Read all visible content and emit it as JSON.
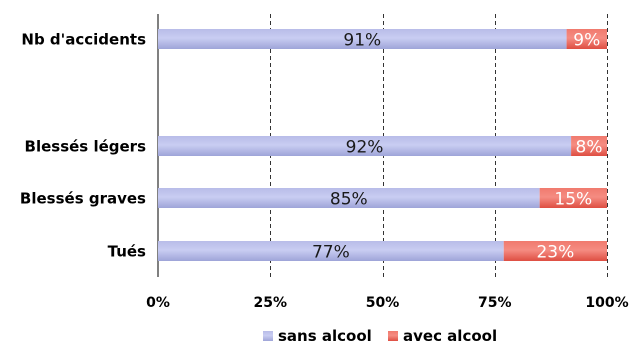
{
  "chart_data": {
    "type": "bar",
    "orientation": "horizontal",
    "stacked": "percent",
    "categories": [
      "Nb d'accidents",
      "Blessés légers",
      "Blessés graves",
      "Tués"
    ],
    "series": [
      {
        "name": "sans alcool",
        "color": "#b4b9e6",
        "values": [
          91,
          92,
          85,
          77
        ],
        "labels": [
          "91%",
          "92%",
          "85%",
          "77%"
        ]
      },
      {
        "name": "avec alcool",
        "color": "#f0665a",
        "values": [
          9,
          8,
          15,
          23
        ],
        "labels": [
          "9%",
          "8%",
          "15%",
          "23%"
        ]
      }
    ],
    "x_ticks": [
      "0%",
      "25%",
      "50%",
      "75%",
      "100%"
    ],
    "xlim": [
      0,
      100
    ],
    "grid": "vertical dashed",
    "legend": "bottom",
    "title": "",
    "xlabel": "",
    "ylabel": ""
  }
}
